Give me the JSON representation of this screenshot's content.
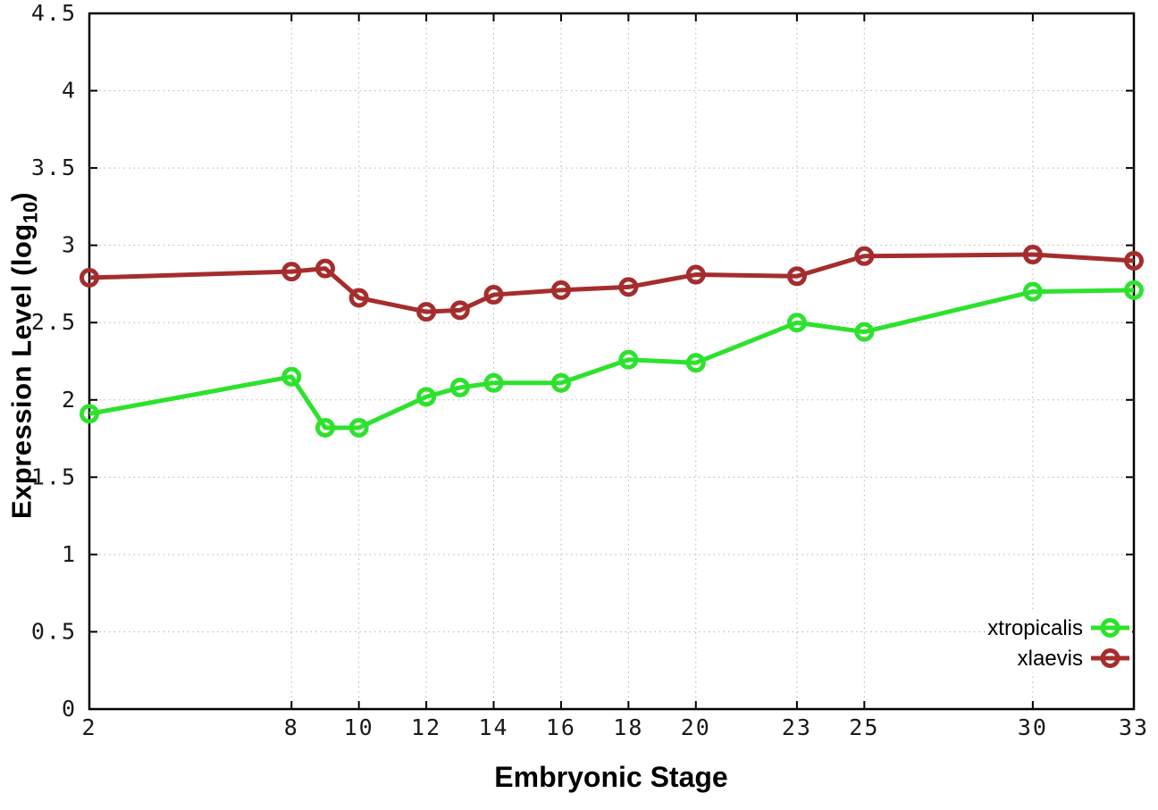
{
  "figure": {
    "xlabel": "Embryonic Stage",
    "ylabel_main": "Expression Level (log",
    "ylabel_sub": "10",
    "ylabel_close": ")"
  },
  "chart_data": {
    "type": "line",
    "title": "",
    "xlabel": "Embryonic Stage",
    "ylabel": "Expression Level (log10)",
    "xlim": [
      2,
      33
    ],
    "ylim": [
      0,
      4.5
    ],
    "x_ticks": [
      2,
      8,
      10,
      12,
      14,
      16,
      18,
      20,
      23,
      25,
      30,
      33
    ],
    "y_ticks": [
      0,
      0.5,
      1,
      1.5,
      2,
      2.5,
      3,
      3.5,
      4,
      4.5
    ],
    "grid": true,
    "marker": "open-circle",
    "legend_position": "bottom-right",
    "x": [
      2,
      8,
      9,
      10,
      12,
      13,
      14,
      16,
      18,
      20,
      23,
      25,
      30,
      33
    ],
    "series": [
      {
        "name": "xtropicalis",
        "color": "#2de22d",
        "values": [
          1.91,
          2.15,
          1.82,
          1.82,
          2.02,
          2.08,
          2.11,
          2.11,
          2.26,
          2.24,
          2.5,
          2.44,
          2.7,
          2.71
        ]
      },
      {
        "name": "xlaevis",
        "color": "#a52d2d",
        "values": [
          2.79,
          2.83,
          2.85,
          2.66,
          2.57,
          2.58,
          2.68,
          2.71,
          2.73,
          2.81,
          2.8,
          2.93,
          2.94,
          2.9
        ]
      }
    ]
  },
  "style_colors": {
    "axis": "#000000",
    "tick_label": "#1a1a1a",
    "grid": "#b3b3b3",
    "background": "#ffffff"
  }
}
